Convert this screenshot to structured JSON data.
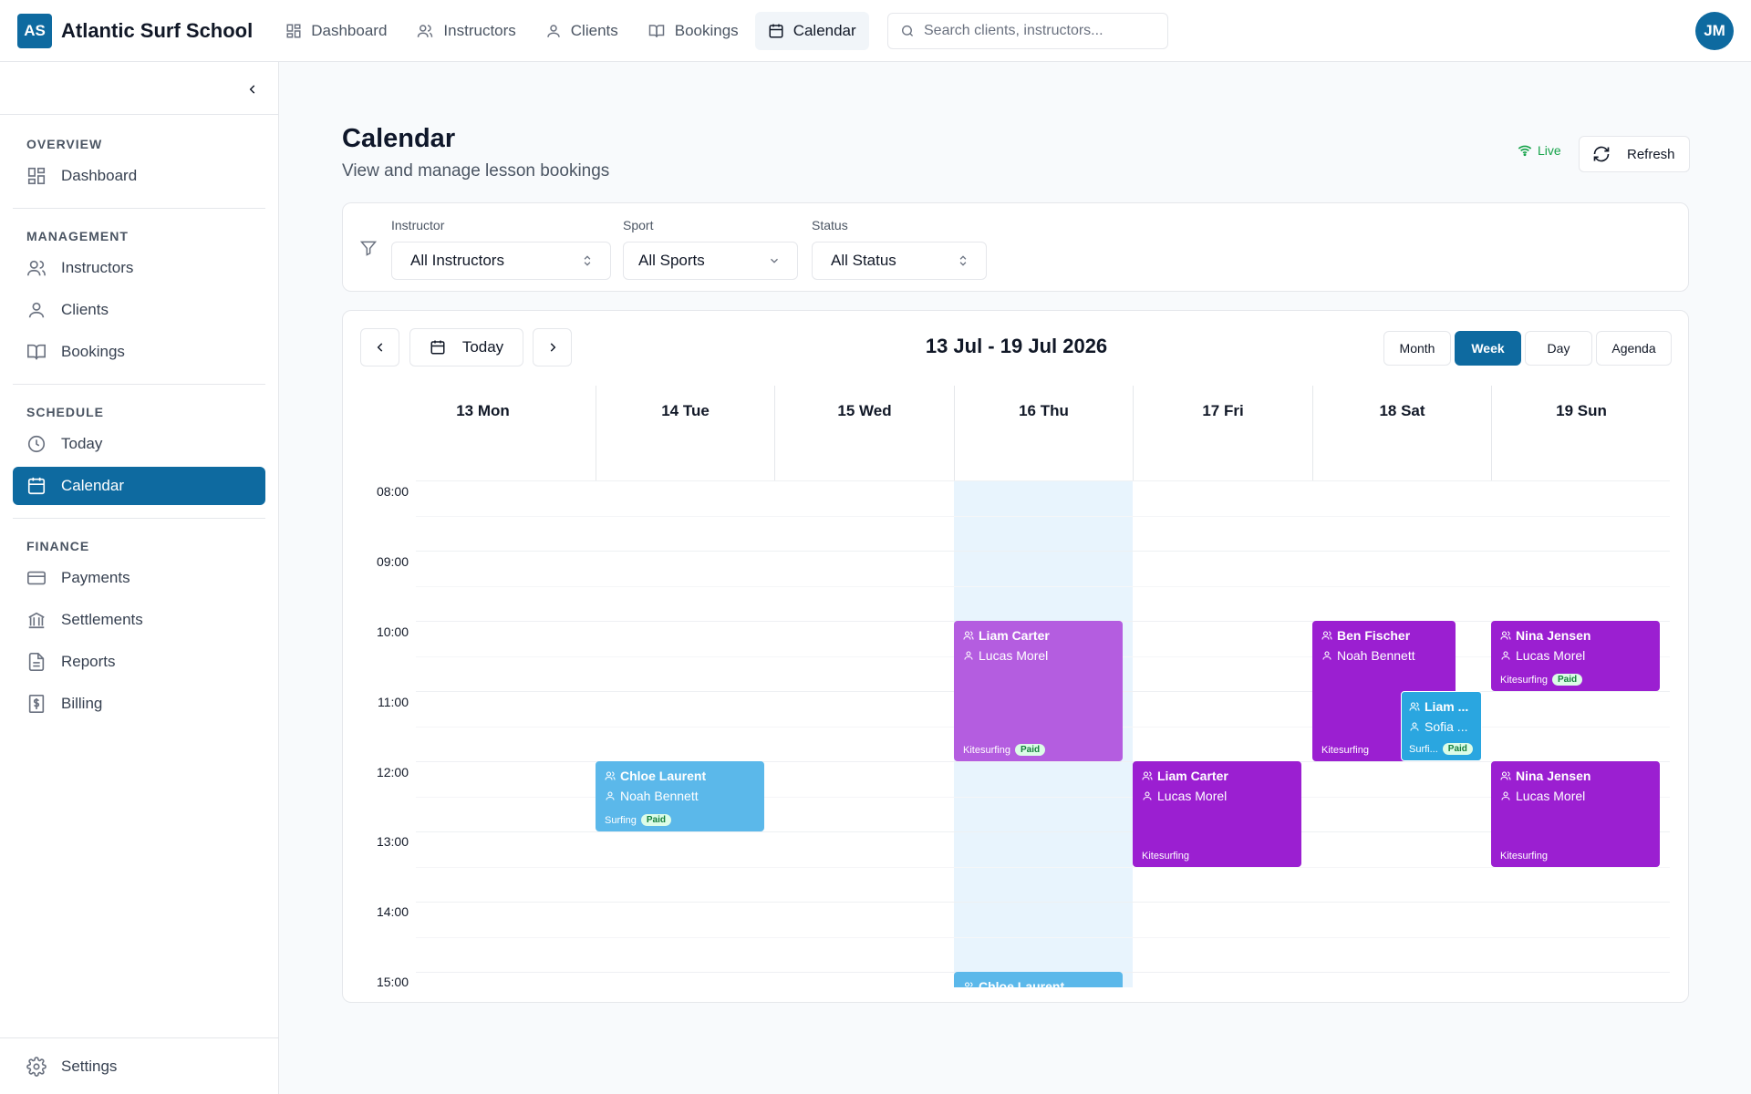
{
  "app": {
    "logo": "AS",
    "name": "Atlantic Surf School"
  },
  "topnav": [
    {
      "label": "Dashboard",
      "icon": "dashboard-icon"
    },
    {
      "label": "Instructors",
      "icon": "users-icon"
    },
    {
      "label": "Clients",
      "icon": "user-icon"
    },
    {
      "label": "Bookings",
      "icon": "book-icon"
    },
    {
      "label": "Calendar",
      "icon": "calendar-icon",
      "active": true
    }
  ],
  "search": {
    "placeholder": "Search clients, instructors..."
  },
  "user": {
    "initials": "JM"
  },
  "sidebar": {
    "overview": {
      "heading": "OVERVIEW",
      "items": [
        "Dashboard"
      ]
    },
    "management": {
      "heading": "MANAGEMENT",
      "items": [
        "Instructors",
        "Clients",
        "Bookings"
      ]
    },
    "schedule": {
      "heading": "SCHEDULE",
      "items": [
        "Today",
        "Calendar"
      ]
    },
    "finance": {
      "heading": "FINANCE",
      "items": [
        "Payments",
        "Settlements",
        "Reports",
        "Billing"
      ]
    },
    "settings": "Settings",
    "active": "Calendar"
  },
  "page": {
    "title": "Calendar",
    "subtitle": "View and manage lesson bookings",
    "live": "Live",
    "refresh": "Refresh"
  },
  "filters": {
    "instructor": {
      "label": "Instructor",
      "value": "All Instructors"
    },
    "sport": {
      "label": "Sport",
      "value": "All Sports"
    },
    "status": {
      "label": "Status",
      "value": "All Status"
    }
  },
  "calendar": {
    "today_label": "Today",
    "range": "13 Jul - 19 Jul 2026",
    "views": [
      "Month",
      "Week",
      "Day",
      "Agenda"
    ],
    "active_view": "Week",
    "days": [
      "13 Mon",
      "14 Tue",
      "15 Wed",
      "16 Thu",
      "17 Fri",
      "18 Sat",
      "19 Sun"
    ],
    "highlighted_day": "16 Thu",
    "hours": [
      "08:00",
      "09:00",
      "10:00",
      "11:00",
      "12:00",
      "13:00",
      "14:00",
      "15:00"
    ],
    "events": [
      {
        "day": 3,
        "start": 10.0,
        "end": 12.0,
        "instructor": "Liam Carter",
        "client": "Lucas Morel",
        "sport": "Kitesurfing",
        "status": "Paid",
        "color": "#b45de0",
        "style": "lpurple"
      },
      {
        "day": 1,
        "start": 12.0,
        "end": 13.0,
        "instructor": "Chloe Laurent",
        "client": "Noah Bennett",
        "sport": "Surfing",
        "status": "Paid",
        "color": "#5bb8ea",
        "style": "blue"
      },
      {
        "day": 4,
        "start": 12.0,
        "end": 13.5,
        "instructor": "Liam Carter",
        "client": "Lucas Morel",
        "sport": "Kitesurfing",
        "status": "",
        "color": "#9b1fd1",
        "style": "purple"
      },
      {
        "day": 5,
        "start": 10.0,
        "end": 12.0,
        "instructor": "Ben Fischer",
        "client": "Noah Bennett",
        "sport": "Kitesurfing",
        "status": "",
        "color": "#9b1fd1",
        "style": "purple"
      },
      {
        "day": 5,
        "start": 11.0,
        "end": 12.0,
        "instructor": "Liam ...",
        "client": "Sofia ...",
        "sport": "Surfi...",
        "status": "Paid",
        "color": "#2aa6e0",
        "style": "cyan",
        "overlap": true
      },
      {
        "day": 6,
        "start": 10.0,
        "end": 11.0,
        "instructor": "Nina Jensen",
        "client": "Lucas Morel",
        "sport": "Kitesurfing",
        "status": "Paid",
        "color": "#9b1fd1",
        "style": "purple"
      },
      {
        "day": 6,
        "start": 12.0,
        "end": 13.5,
        "instructor": "Nina Jensen",
        "client": "Lucas Morel",
        "sport": "Kitesurfing",
        "status": "",
        "color": "#9b1fd1",
        "style": "purple"
      },
      {
        "day": 3,
        "start": 15.0,
        "end": 16.0,
        "instructor": "Chloe Laurent",
        "client": "",
        "sport": "",
        "status": "",
        "color": "#5bb8ea",
        "style": "blue"
      }
    ]
  }
}
